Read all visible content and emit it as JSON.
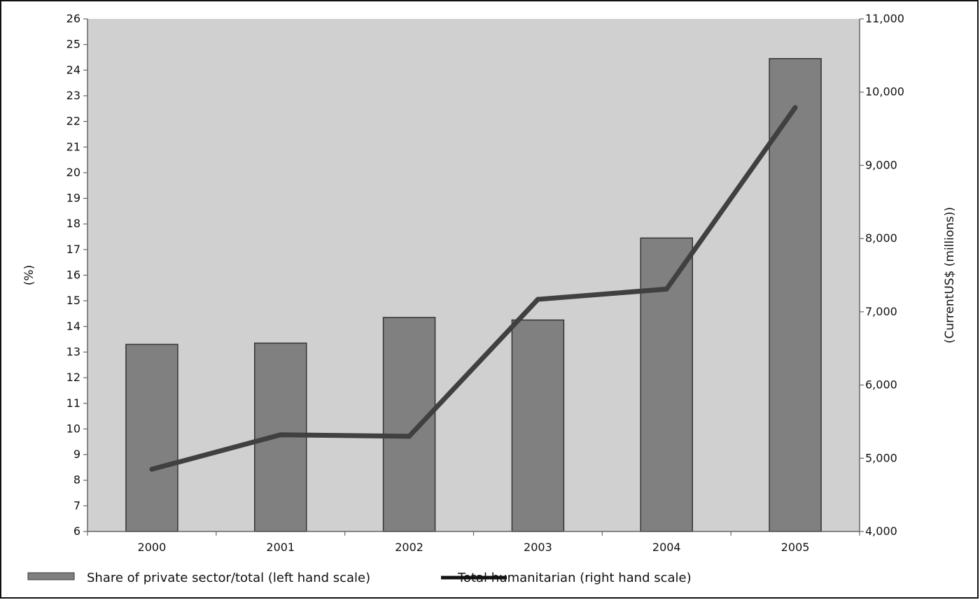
{
  "chart_data": {
    "type": "bar",
    "categories": [
      "2000",
      "2001",
      "2002",
      "2003",
      "2004",
      "2005"
    ],
    "series": [
      {
        "name": "Share of private sector/total (left hand scale)",
        "kind": "bar",
        "axis": "left",
        "values": [
          13.3,
          13.35,
          14.35,
          14.25,
          17.45,
          24.45
        ]
      },
      {
        "name": "Total humanitarian (right hand scale)",
        "kind": "line",
        "axis": "right",
        "values": [
          4850,
          5320,
          5300,
          7170,
          7310,
          9790
        ]
      }
    ],
    "left_axis": {
      "label": "(%)",
      "min": 6,
      "max": 26,
      "step": 1,
      "ticks": [
        "6",
        "7",
        "8",
        "9",
        "10",
        "11",
        "12",
        "13",
        "14",
        "15",
        "16",
        "17",
        "18",
        "19",
        "20",
        "21",
        "22",
        "23",
        "24",
        "25",
        "26"
      ]
    },
    "right_axis": {
      "label": "(CurrentUS$ (millions))",
      "min": 4000,
      "max": 11000,
      "step": 1000,
      "ticks": [
        "4,000",
        "5,000",
        "6,000",
        "7,000",
        "8,000",
        "9,000",
        "10,000",
        "11,000"
      ]
    },
    "grid": false,
    "legend_position": "bottom",
    "colors": {
      "plot_background": "#d0d0d0",
      "bar_fill": "#808080",
      "bar_stroke": "#333333",
      "line": "#404040",
      "legend_line": "#111111"
    }
  }
}
